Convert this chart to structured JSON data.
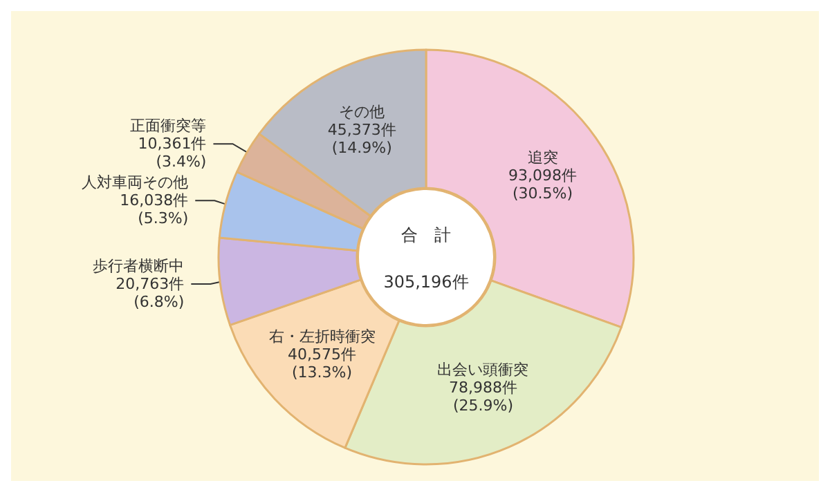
{
  "chart_data": {
    "type": "donut",
    "categories": [
      "追突",
      "出会い頭衝突",
      "右・左折時衝突",
      "歩行者横断中",
      "人対車両その他",
      "正面衝突等",
      "その他"
    ],
    "values": [
      93098,
      78988,
      40575,
      20763,
      16038,
      10361,
      45373
    ],
    "value_labels": [
      "93,098件\n(30.5%)",
      "78,988件\n(25.9%)",
      "40,575件\n(13.3%)",
      "20,763件\n(6.8%)",
      "16,038件\n(5.3%)",
      "10,361件\n(3.4%)",
      "45,373件\n(14.9%)"
    ],
    "colors": [
      "#f4c8dc",
      "#e3edc6",
      "#fbdcb6",
      "#cbb6e2",
      "#a9c3ec",
      "#dcb39a",
      "#b9bcc6"
    ],
    "annotations": [
      "合　計",
      "305,196件"
    ],
    "legend": false
  }
}
